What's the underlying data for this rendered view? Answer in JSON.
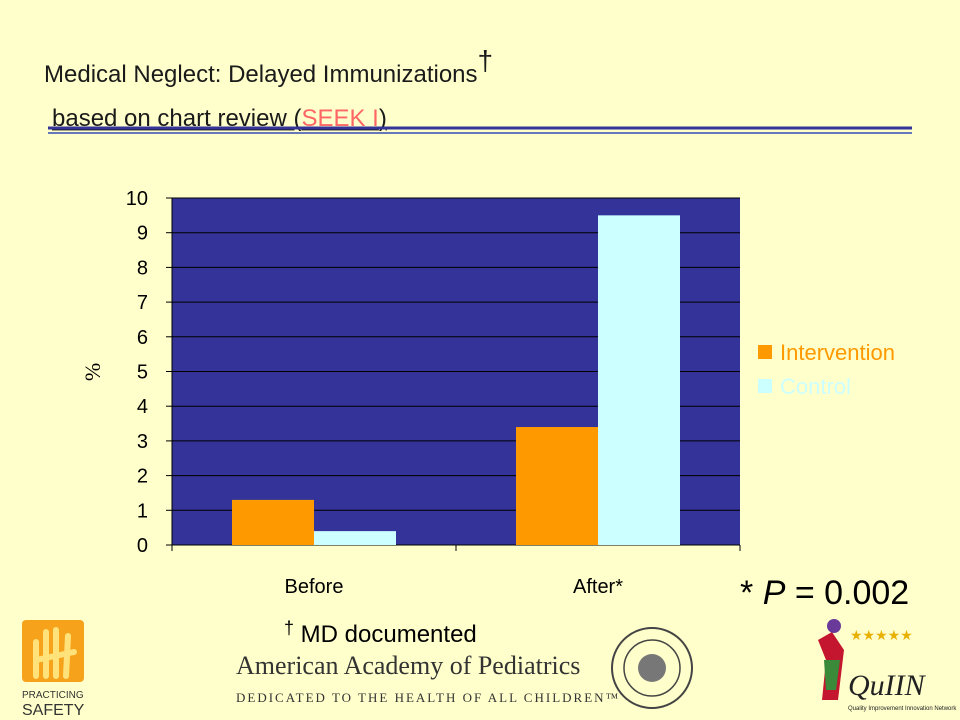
{
  "chart_data": {
    "type": "bar",
    "title": "Medical Neglect: Delayed Immunizations",
    "title_mark": "†",
    "subtitle_parts": [
      "based on chart review (",
      "SEEK I",
      ")"
    ],
    "y_label": "%",
    "categories": [
      "Before",
      "After*"
    ],
    "series": [
      {
        "name": "Intervention",
        "color": "#ff9900",
        "values": [
          1.3,
          3.4
        ]
      },
      {
        "name": "Control",
        "color": "#ccffff",
        "values": [
          0.4,
          9.5
        ]
      }
    ],
    "ylim": [
      0,
      10
    ],
    "yticks": [
      0,
      1,
      2,
      3,
      4,
      5,
      6,
      7,
      8,
      9,
      10
    ],
    "grid": true,
    "legend": "right",
    "plot_color": "#333399",
    "annotation_parts": [
      "* ",
      "P",
      " = 0.002"
    ],
    "footnote_parts": [
      "†",
      " MD documented"
    ]
  },
  "logos": {
    "left": [
      "PRACTICING",
      "SAFETY"
    ],
    "center": [
      "American Academy of Pediatrics",
      "DEDICATED TO THE HEALTH OF ALL CHILDREN™"
    ],
    "right": [
      "QuIIN",
      "Quality Improvement Innovation Network"
    ]
  }
}
